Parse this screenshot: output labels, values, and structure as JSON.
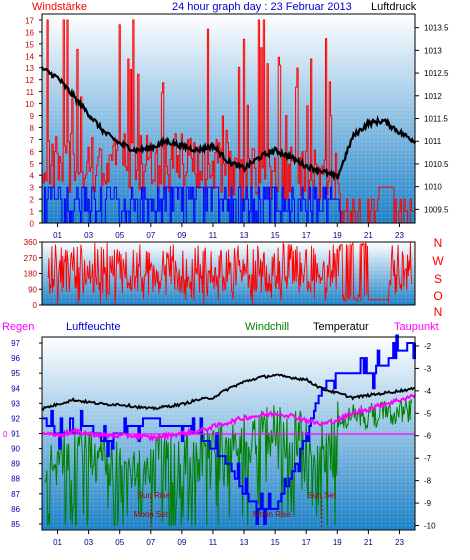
{
  "colors": {
    "wind_gust": "#ff0000",
    "wind_avg": "#0000ff",
    "pressure": "#000000",
    "direction": "#ff0000",
    "humidity": "#0000ff",
    "windchill": "#008000",
    "temperature": "#000000",
    "dewpoint": "#ff00ff",
    "bg_top": "#ffffff",
    "bg_bottom": "#1f82c8"
  },
  "chart_data": [
    {
      "type": "line",
      "title": "24 hour graph day : 23 Februar 2013",
      "left_label": "Windstärke",
      "right_label": "Luftdruck",
      "x_ticks": [
        "01",
        "03",
        "05",
        "07",
        "09",
        "11",
        "13",
        "15",
        "17",
        "19",
        "21",
        "23"
      ],
      "y_left_ticks": [
        "0",
        "1",
        "2",
        "3",
        "4",
        "5",
        "6",
        "7",
        "8",
        "9",
        "10",
        "11",
        "12",
        "13",
        "14",
        "15",
        "16",
        "17"
      ],
      "y_right_ticks": [
        "1009.5",
        "1010",
        "1010.5",
        "1011",
        "1011.5",
        "1012",
        "1012.5",
        "1013",
        "1013.5"
      ],
      "ylim_left": [
        0,
        17.5
      ],
      "ylim_right": [
        1009.2,
        1013.8
      ],
      "series": [
        {
          "key": "pressure",
          "x": [
            0,
            1,
            2,
            3,
            4,
            5,
            6,
            7,
            8,
            9,
            10,
            11,
            12,
            13,
            14,
            15,
            16,
            17,
            18,
            19,
            20,
            21,
            22,
            23,
            24
          ],
          "values": [
            1012.6,
            1012.4,
            1012.0,
            1011.6,
            1011.2,
            1010.95,
            1010.8,
            1010.85,
            1011.0,
            1010.9,
            1010.8,
            1010.9,
            1010.55,
            1010.4,
            1010.65,
            1010.8,
            1010.65,
            1010.45,
            1010.35,
            1010.2,
            1011.1,
            1011.4,
            1011.45,
            1011.2,
            1011.0
          ]
        }
      ]
    },
    {
      "type": "line",
      "direction_letters": [
        "N",
        "W",
        "S",
        "O",
        "N"
      ],
      "y_ticks": [
        "0",
        "90",
        "180",
        "270",
        "360"
      ],
      "ylim": [
        0,
        360
      ]
    },
    {
      "type": "line",
      "labels": {
        "regen": "Regen",
        "luftfeuchte": "Luftfeuchte",
        "windchill": "Windchill",
        "temperatur": "Temperatur",
        "taupunkt": "Taupunkt"
      },
      "y_left_ticks": [
        "85",
        "86",
        "87",
        "88",
        "89",
        "90",
        "91",
        "92",
        "93",
        "94",
        "95",
        "96",
        "97"
      ],
      "y_right_ticks": [
        "-2",
        "-3",
        "-4",
        "-5",
        "-6",
        "-7",
        "-8",
        "-9",
        "-10"
      ],
      "rain_value": "0",
      "ylim_left": [
        84.6,
        97.4
      ],
      "ylim_right": [
        -10.2,
        -1.6
      ],
      "annotations": [
        {
          "key": "sun_rise",
          "text": "Sun Rise",
          "hour": 7.2
        },
        {
          "key": "moon_set",
          "text": "Moon Set",
          "hour": 7.0
        },
        {
          "key": "sun_set",
          "text": "Sun Set",
          "hour": 18.0
        },
        {
          "key": "moon_rise",
          "text": "Moon Rise",
          "hour": 14.8
        }
      ],
      "series": [
        {
          "key": "temperature",
          "x": [
            0,
            1,
            2,
            3,
            4,
            5,
            6,
            7,
            8,
            9,
            10,
            11,
            12,
            13,
            14,
            15,
            16,
            17,
            18,
            19,
            20,
            21,
            22,
            23,
            24
          ],
          "values": [
            -4.8,
            -4.6,
            -4.4,
            -4.5,
            -4.6,
            -4.6,
            -4.7,
            -4.8,
            -4.7,
            -4.6,
            -4.4,
            -4.3,
            -3.9,
            -3.6,
            -3.4,
            -3.3,
            -3.4,
            -3.5,
            -3.9,
            -4.1,
            -4.3,
            -4.2,
            -4.1,
            -4.0,
            -3.9
          ]
        },
        {
          "key": "dewpoint",
          "x": [
            0,
            1,
            2,
            3,
            4,
            5,
            6,
            7,
            8,
            9,
            10,
            11,
            12,
            13,
            14,
            15,
            16,
            17,
            18,
            19,
            20,
            21,
            22,
            23,
            24
          ],
          "values": [
            -5.8,
            -6.0,
            -5.8,
            -5.9,
            -6.0,
            -6.0,
            -6.0,
            -6.1,
            -6.0,
            -5.9,
            -5.8,
            -5.6,
            -5.4,
            -5.2,
            -5.1,
            -5.0,
            -5.1,
            -5.3,
            -5.5,
            -5.3,
            -5.0,
            -4.8,
            -4.6,
            -4.4,
            -4.2
          ]
        },
        {
          "key": "humidity",
          "x": [
            0,
            1,
            2,
            3,
            4,
            5,
            6,
            7,
            8,
            9,
            10,
            11,
            12,
            13,
            14,
            15,
            16,
            17,
            18,
            19,
            20,
            21,
            22,
            23,
            24
          ],
          "values": [
            92,
            91,
            91,
            91.5,
            90.5,
            91,
            91.5,
            92,
            91.5,
            91.5,
            91,
            90,
            89,
            87,
            86,
            86,
            88,
            91,
            94,
            95,
            95,
            95,
            95.5,
            96.5,
            97
          ]
        }
      ]
    }
  ]
}
